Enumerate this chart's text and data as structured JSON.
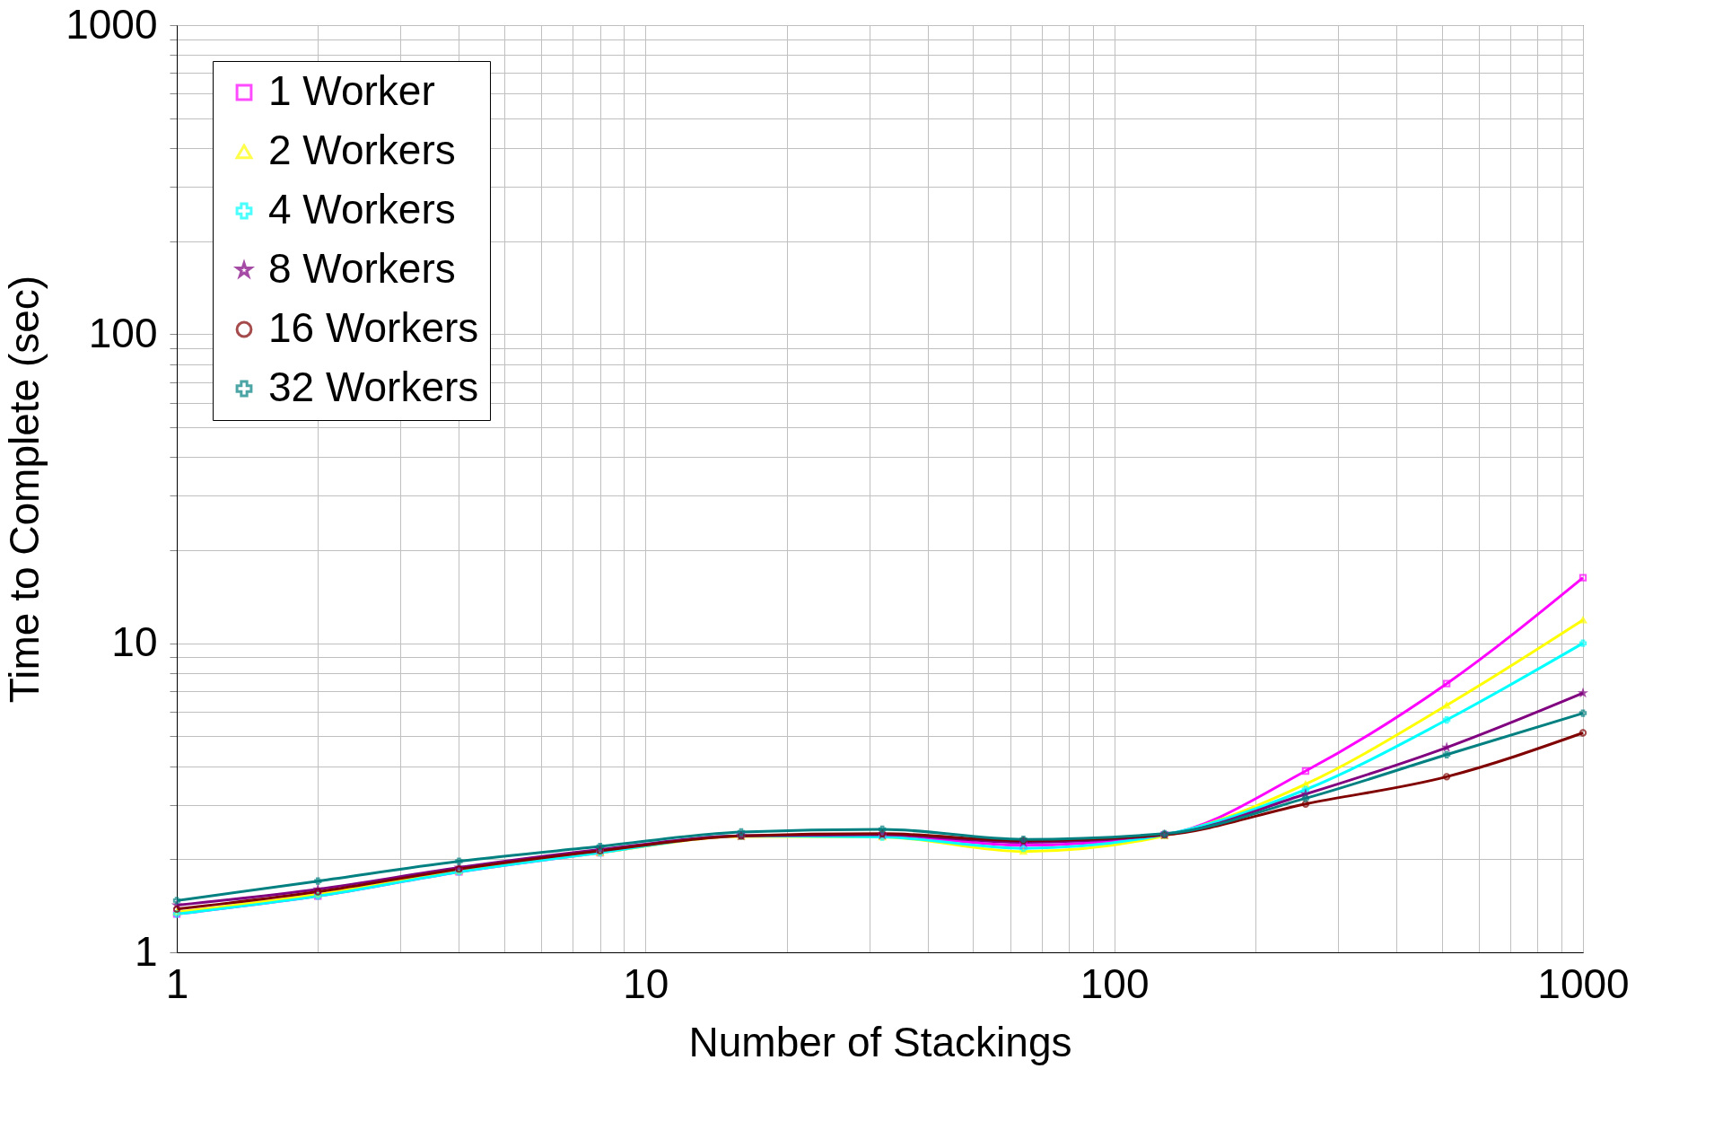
{
  "chart_data": {
    "type": "line",
    "xlabel": "Number of Stackings",
    "ylabel": "Time to Complete (sec)",
    "log": "xy",
    "grid": true,
    "legend": "top left",
    "line_style": "solid",
    "x": [
      1,
      2,
      4,
      8,
      16,
      32,
      64,
      128,
      256,
      512,
      1000
    ],
    "xlim": [
      1,
      1000
    ],
    "ylim": [
      1,
      1000
    ],
    "xticks": [
      1,
      {
        "value": 2,
        "label": null
      },
      {
        "value": 3,
        "label": null
      },
      {
        "value": 4,
        "label": null
      },
      {
        "value": 5,
        "label": null
      },
      {
        "value": 6,
        "label": null
      },
      {
        "value": 7,
        "label": null
      },
      {
        "value": 8,
        "label": null
      },
      {
        "value": 9,
        "label": null
      },
      10,
      {
        "value": 20,
        "label": null
      },
      {
        "value": 30,
        "label": null
      },
      {
        "value": 40,
        "label": null
      },
      {
        "value": 50,
        "label": null
      },
      {
        "value": 60,
        "label": null
      },
      {
        "value": 70,
        "label": null
      },
      {
        "value": 80,
        "label": null
      },
      {
        "value": 90,
        "label": null
      },
      100,
      {
        "value": 200,
        "label": null
      },
      {
        "value": 300,
        "label": null
      },
      {
        "value": 400,
        "label": null
      },
      {
        "value": 500,
        "label": null
      },
      {
        "value": 600,
        "label": null
      },
      {
        "value": 700,
        "label": null
      },
      {
        "value": 800,
        "label": null
      },
      {
        "value": 900,
        "label": null
      },
      1000
    ],
    "yticks": [
      1,
      {
        "value": 2,
        "label": null
      },
      {
        "value": 3,
        "label": null
      },
      {
        "value": 4,
        "label": null
      },
      {
        "value": 5,
        "label": null
      },
      {
        "value": 6,
        "label": null
      },
      {
        "value": 7,
        "label": null
      },
      {
        "value": 8,
        "label": null
      },
      {
        "value": 9,
        "label": null
      },
      10,
      {
        "value": 20,
        "label": null
      },
      {
        "value": 30,
        "label": null
      },
      {
        "value": 40,
        "label": null
      },
      {
        "value": 50,
        "label": null
      },
      {
        "value": 60,
        "label": null
      },
      {
        "value": 70,
        "label": null
      },
      {
        "value": 80,
        "label": null
      },
      {
        "value": 90,
        "label": null
      },
      100,
      {
        "value": 200,
        "label": null
      },
      {
        "value": 300,
        "label": null
      },
      {
        "value": 400,
        "label": null
      },
      {
        "value": 500,
        "label": null
      },
      {
        "value": 600,
        "label": null
      },
      {
        "value": 700,
        "label": null
      },
      {
        "value": 800,
        "label": null
      },
      {
        "value": 900,
        "label": null
      },
      1000
    ],
    "series": [
      {
        "name": "1 Worker",
        "color": "#ff00ff",
        "marker": "square",
        "values": [
          1.33,
          1.52,
          1.82,
          2.1,
          2.38,
          2.38,
          2.22,
          2.4,
          3.86,
          7.4,
          16.3
        ]
      },
      {
        "name": "2 Workers",
        "color": "#ffff00",
        "marker": "triangle",
        "values": [
          1.35,
          1.54,
          1.83,
          2.1,
          2.37,
          2.36,
          2.12,
          2.38,
          3.5,
          6.3,
          11.9
        ]
      },
      {
        "name": "4 Workers",
        "color": "#00ffff",
        "marker": "cross",
        "values": [
          1.33,
          1.52,
          1.82,
          2.1,
          2.38,
          2.36,
          2.17,
          2.4,
          3.36,
          5.65,
          10
        ]
      },
      {
        "name": "8 Workers",
        "color": "#800080",
        "marker": "star",
        "values": [
          1.42,
          1.6,
          1.88,
          2.15,
          2.38,
          2.4,
          2.27,
          2.4,
          3.25,
          4.6,
          6.9
        ]
      },
      {
        "name": "16 Workers",
        "color": "#800000",
        "marker": "circle",
        "values": [
          1.38,
          1.57,
          1.86,
          2.13,
          2.38,
          2.42,
          2.3,
          2.4,
          3.02,
          3.7,
          5.13
        ]
      },
      {
        "name": "32 Workers",
        "color": "#008080",
        "marker": "cross",
        "values": [
          1.47,
          1.7,
          1.97,
          2.2,
          2.45,
          2.5,
          2.32,
          2.42,
          3.15,
          4.36,
          5.94
        ]
      }
    ]
  }
}
